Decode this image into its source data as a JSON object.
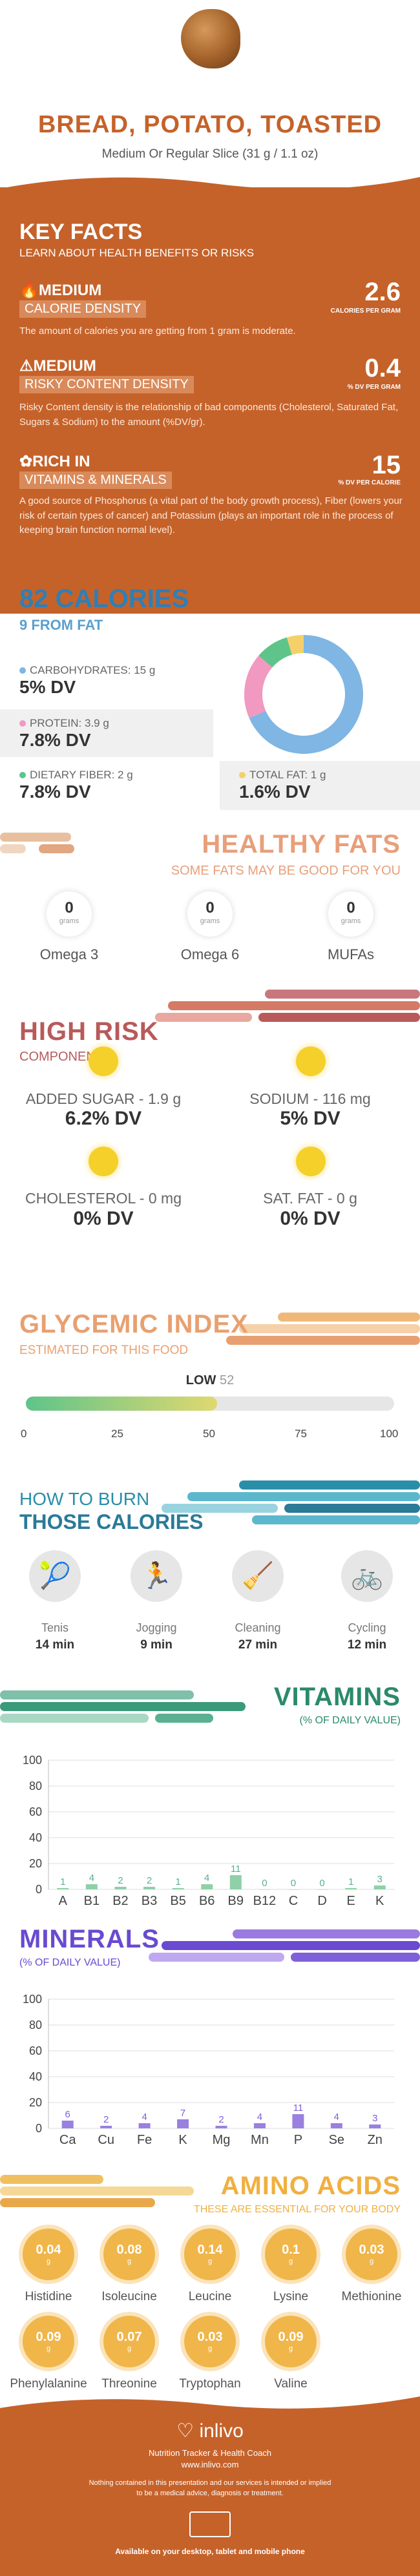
{
  "header": {
    "title": "BREAD, POTATO, TOASTED",
    "subtitle": "Medium Or Regular Slice (31 g / 1.1 oz)"
  },
  "key_facts": {
    "title": "KEY FACTS",
    "subtitle": "LEARN ABOUT HEALTH BENEFITS OR RISKS",
    "items": [
      {
        "level": "MEDIUM",
        "label": "CALORIE DENSITY",
        "value": "2.6",
        "unit": "CALORIES PER GRAM",
        "desc": "The amount of calories you are getting from 1 gram is moderate."
      },
      {
        "level": "MEDIUM",
        "label": "RISKY CONTENT DENSITY",
        "value": "0.4",
        "unit": "% DV PER GRAM",
        "desc": "Risky Content density is the relationship of bad components (Cholesterol, Saturated Fat, Sugars & Sodium) to the amount (%DV/gr)."
      },
      {
        "level": "RICH IN",
        "label": "VITAMINS & MINERALS",
        "value": "15",
        "unit": "% DV PER CALORIE",
        "desc": "A good source of Phosphorus (a vital part of the body growth process), Fiber (lowers your risk of certain types of cancer) and Potassium (plays an important role in the process of keeping brain function normal level)."
      }
    ]
  },
  "calories": {
    "title": "82 CALORIES",
    "subtitle": "9 FROM FAT",
    "nutrients": [
      {
        "label": "CARBOHYDRATES: 15 g",
        "value": "5% DV",
        "color": "#7fb6e3"
      },
      {
        "label": "PROTEIN: 3.9 g",
        "value": "7.8% DV",
        "color": "#f199c0"
      },
      {
        "label": "DIETARY FIBER: 2 g",
        "value": "7.8% DV",
        "color": "#5fc48a"
      },
      {
        "label": "TOTAL FAT: 1 g",
        "value": "1.6% DV",
        "color": "#f5d06a"
      }
    ]
  },
  "chart_data": [
    {
      "type": "pie",
      "categories": [
        "Carbohydrates",
        "Protein",
        "Dietary Fiber",
        "Total Fat"
      ],
      "values": [
        15,
        3.9,
        2,
        1
      ],
      "colors": [
        "#7fb6e3",
        "#f199c0",
        "#5fc48a",
        "#f5d06a"
      ]
    },
    {
      "type": "bar",
      "title": "VITAMINS",
      "ylabel": "% OF DAILY VALUE",
      "categories": [
        "A",
        "B1",
        "B2",
        "B3",
        "B5",
        "B6",
        "B9",
        "B12",
        "C",
        "D",
        "E",
        "K"
      ],
      "values": [
        1,
        4,
        2,
        2,
        1,
        4,
        11,
        0,
        0,
        0,
        1,
        3
      ],
      "ylim": [
        0,
        100
      ],
      "yticks": [
        0,
        20,
        40,
        60,
        80,
        100
      ]
    },
    {
      "type": "bar",
      "title": "MINERALS",
      "ylabel": "% OF DAILY VALUE",
      "categories": [
        "Ca",
        "Cu",
        "Fe",
        "K",
        "Mg",
        "Mn",
        "P",
        "Se",
        "Zn"
      ],
      "values": [
        6,
        2,
        4,
        7,
        2,
        4,
        11,
        4,
        3
      ],
      "ylim": [
        0,
        100
      ],
      "yticks": [
        0,
        20,
        40,
        60,
        80,
        100
      ]
    }
  ],
  "healthy_fats": {
    "title": "HEALTHY FATS",
    "subtitle": "SOME FATS MAY BE GOOD FOR YOU",
    "unit": "grams",
    "items": [
      {
        "name": "Omega 3",
        "value": "0"
      },
      {
        "name": "Omega 6",
        "value": "0"
      },
      {
        "name": "MUFAs",
        "value": "0"
      }
    ]
  },
  "high_risk": {
    "title": "HIGH RISK",
    "subtitle": "COMPONENTS",
    "items": [
      {
        "label": "ADDED SUGAR - 1.9 g",
        "value": "6.2% DV"
      },
      {
        "label": "SODIUM - 116 mg",
        "value": "5% DV"
      },
      {
        "label": "CHOLESTEROL - 0 mg",
        "value": "0% DV"
      },
      {
        "label": "SAT. FAT - 0 g",
        "value": "0% DV"
      }
    ]
  },
  "glycemic": {
    "title": "GLYCEMIC INDEX",
    "subtitle": "ESTIMATED FOR THIS FOOD",
    "level": "LOW",
    "value": "52",
    "fill_fraction": 0.52,
    "ticks": [
      "0",
      "25",
      "50",
      "75",
      "100"
    ]
  },
  "burn": {
    "title1": "HOW TO BURN",
    "title2": "THOSE CALORIES",
    "items": [
      {
        "name": "Tenis",
        "time": "14 min"
      },
      {
        "name": "Jogging",
        "time": "9 min"
      },
      {
        "name": "Cleaning",
        "time": "27 min"
      },
      {
        "name": "Cycling",
        "time": "12 min"
      }
    ]
  },
  "vitamins": {
    "title": "VITAMINS",
    "subtitle": "(% OF DAILY VALUE)"
  },
  "minerals": {
    "title": "MINERALS",
    "subtitle": "(% OF DAILY VALUE)"
  },
  "amino": {
    "title": "AMINO ACIDS",
    "subtitle": "THESE ARE ESSENTIAL FOR YOUR BODY",
    "unit": "g",
    "items": [
      {
        "name": "Histidine",
        "value": "0.04"
      },
      {
        "name": "Isoleucine",
        "value": "0.08"
      },
      {
        "name": "Leucine",
        "value": "0.14"
      },
      {
        "name": "Lysine",
        "value": "0.1"
      },
      {
        "name": "Methionine",
        "value": "0.03"
      },
      {
        "name": "Phenylalanine",
        "value": "0.09"
      },
      {
        "name": "Threonine",
        "value": "0.07"
      },
      {
        "name": "Tryptophan",
        "value": "0.03"
      },
      {
        "name": "Valine",
        "value": "0.09"
      }
    ]
  },
  "footer": {
    "brand": "inlivo",
    "tagline": "Nutrition Tracker & Health Coach",
    "url": "www.inlivo.com",
    "disclaimer1": "Nothing contained in this presentation and our services is intended or implied",
    "disclaimer2": "to be a medical advice, diagnosis or treatment.",
    "available": "Available on your desktop, tablet and mobile phone"
  }
}
